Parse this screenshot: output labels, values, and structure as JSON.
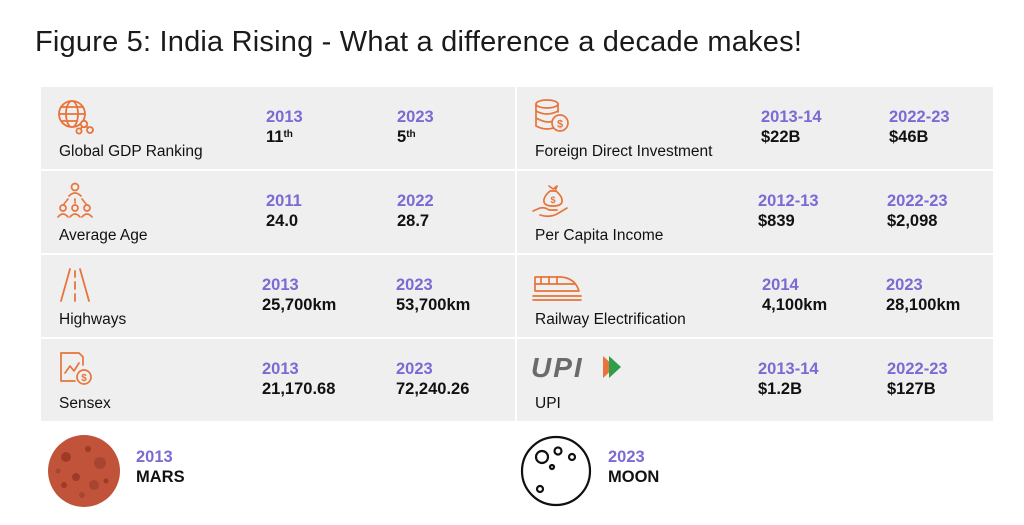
{
  "title": "Figure 5: India Rising - What a difference a decade makes!",
  "colors": {
    "accent_purple": "#7b6ad4",
    "icon_orange": "#e8743b",
    "panel_bg": "#efefef",
    "mars_red": "#c0533a"
  },
  "left_rows": [
    {
      "label": "Global GDP Ranking",
      "icon": "globe-network-icon",
      "from_year": "2013",
      "from_value": "11",
      "from_suffix": "th",
      "to_year": "2023",
      "to_value": "5",
      "to_suffix": "th"
    },
    {
      "label": "Average Age",
      "icon": "people-group-icon",
      "from_year": "2011",
      "from_value": "24.0",
      "to_year": "2022",
      "to_value": "28.7"
    },
    {
      "label": "Highways",
      "icon": "road-icon",
      "from_year": "2013",
      "from_value": "25,700km",
      "to_year": "2023",
      "to_value": "53,700km"
    },
    {
      "label": "Sensex",
      "icon": "stock-chart-icon",
      "from_year": "2013",
      "from_value": "21,170.68",
      "to_year": "2023",
      "to_value": "72,240.26"
    }
  ],
  "right_rows": [
    {
      "label": "Foreign Direct Investment",
      "icon": "coins-dollar-icon",
      "from_year": "2013-14",
      "from_value": "$22B",
      "to_year": "2022-23",
      "to_value": "$46B"
    },
    {
      "label": "Per Capita Income",
      "icon": "hand-money-bag-icon",
      "from_year": "2012-13",
      "from_value": "$839",
      "to_year": "2022-23",
      "to_value": "$2,098"
    },
    {
      "label": "Railway Electrification",
      "icon": "train-icon",
      "from_year": "2014",
      "from_value": "4,100km",
      "to_year": "2023",
      "to_value": "28,100km"
    },
    {
      "label": "UPI",
      "icon": "upi-logo-icon",
      "logo_text": "UPI",
      "from_year": "2013-14",
      "from_value": "$1.2B",
      "to_year": "2022-23",
      "to_value": "$127B"
    }
  ],
  "bottom": [
    {
      "year": "2013",
      "name": "MARS",
      "icon": "mars-planet-icon"
    },
    {
      "year": "2023",
      "name": "MOON",
      "icon": "moon-icon"
    }
  ]
}
